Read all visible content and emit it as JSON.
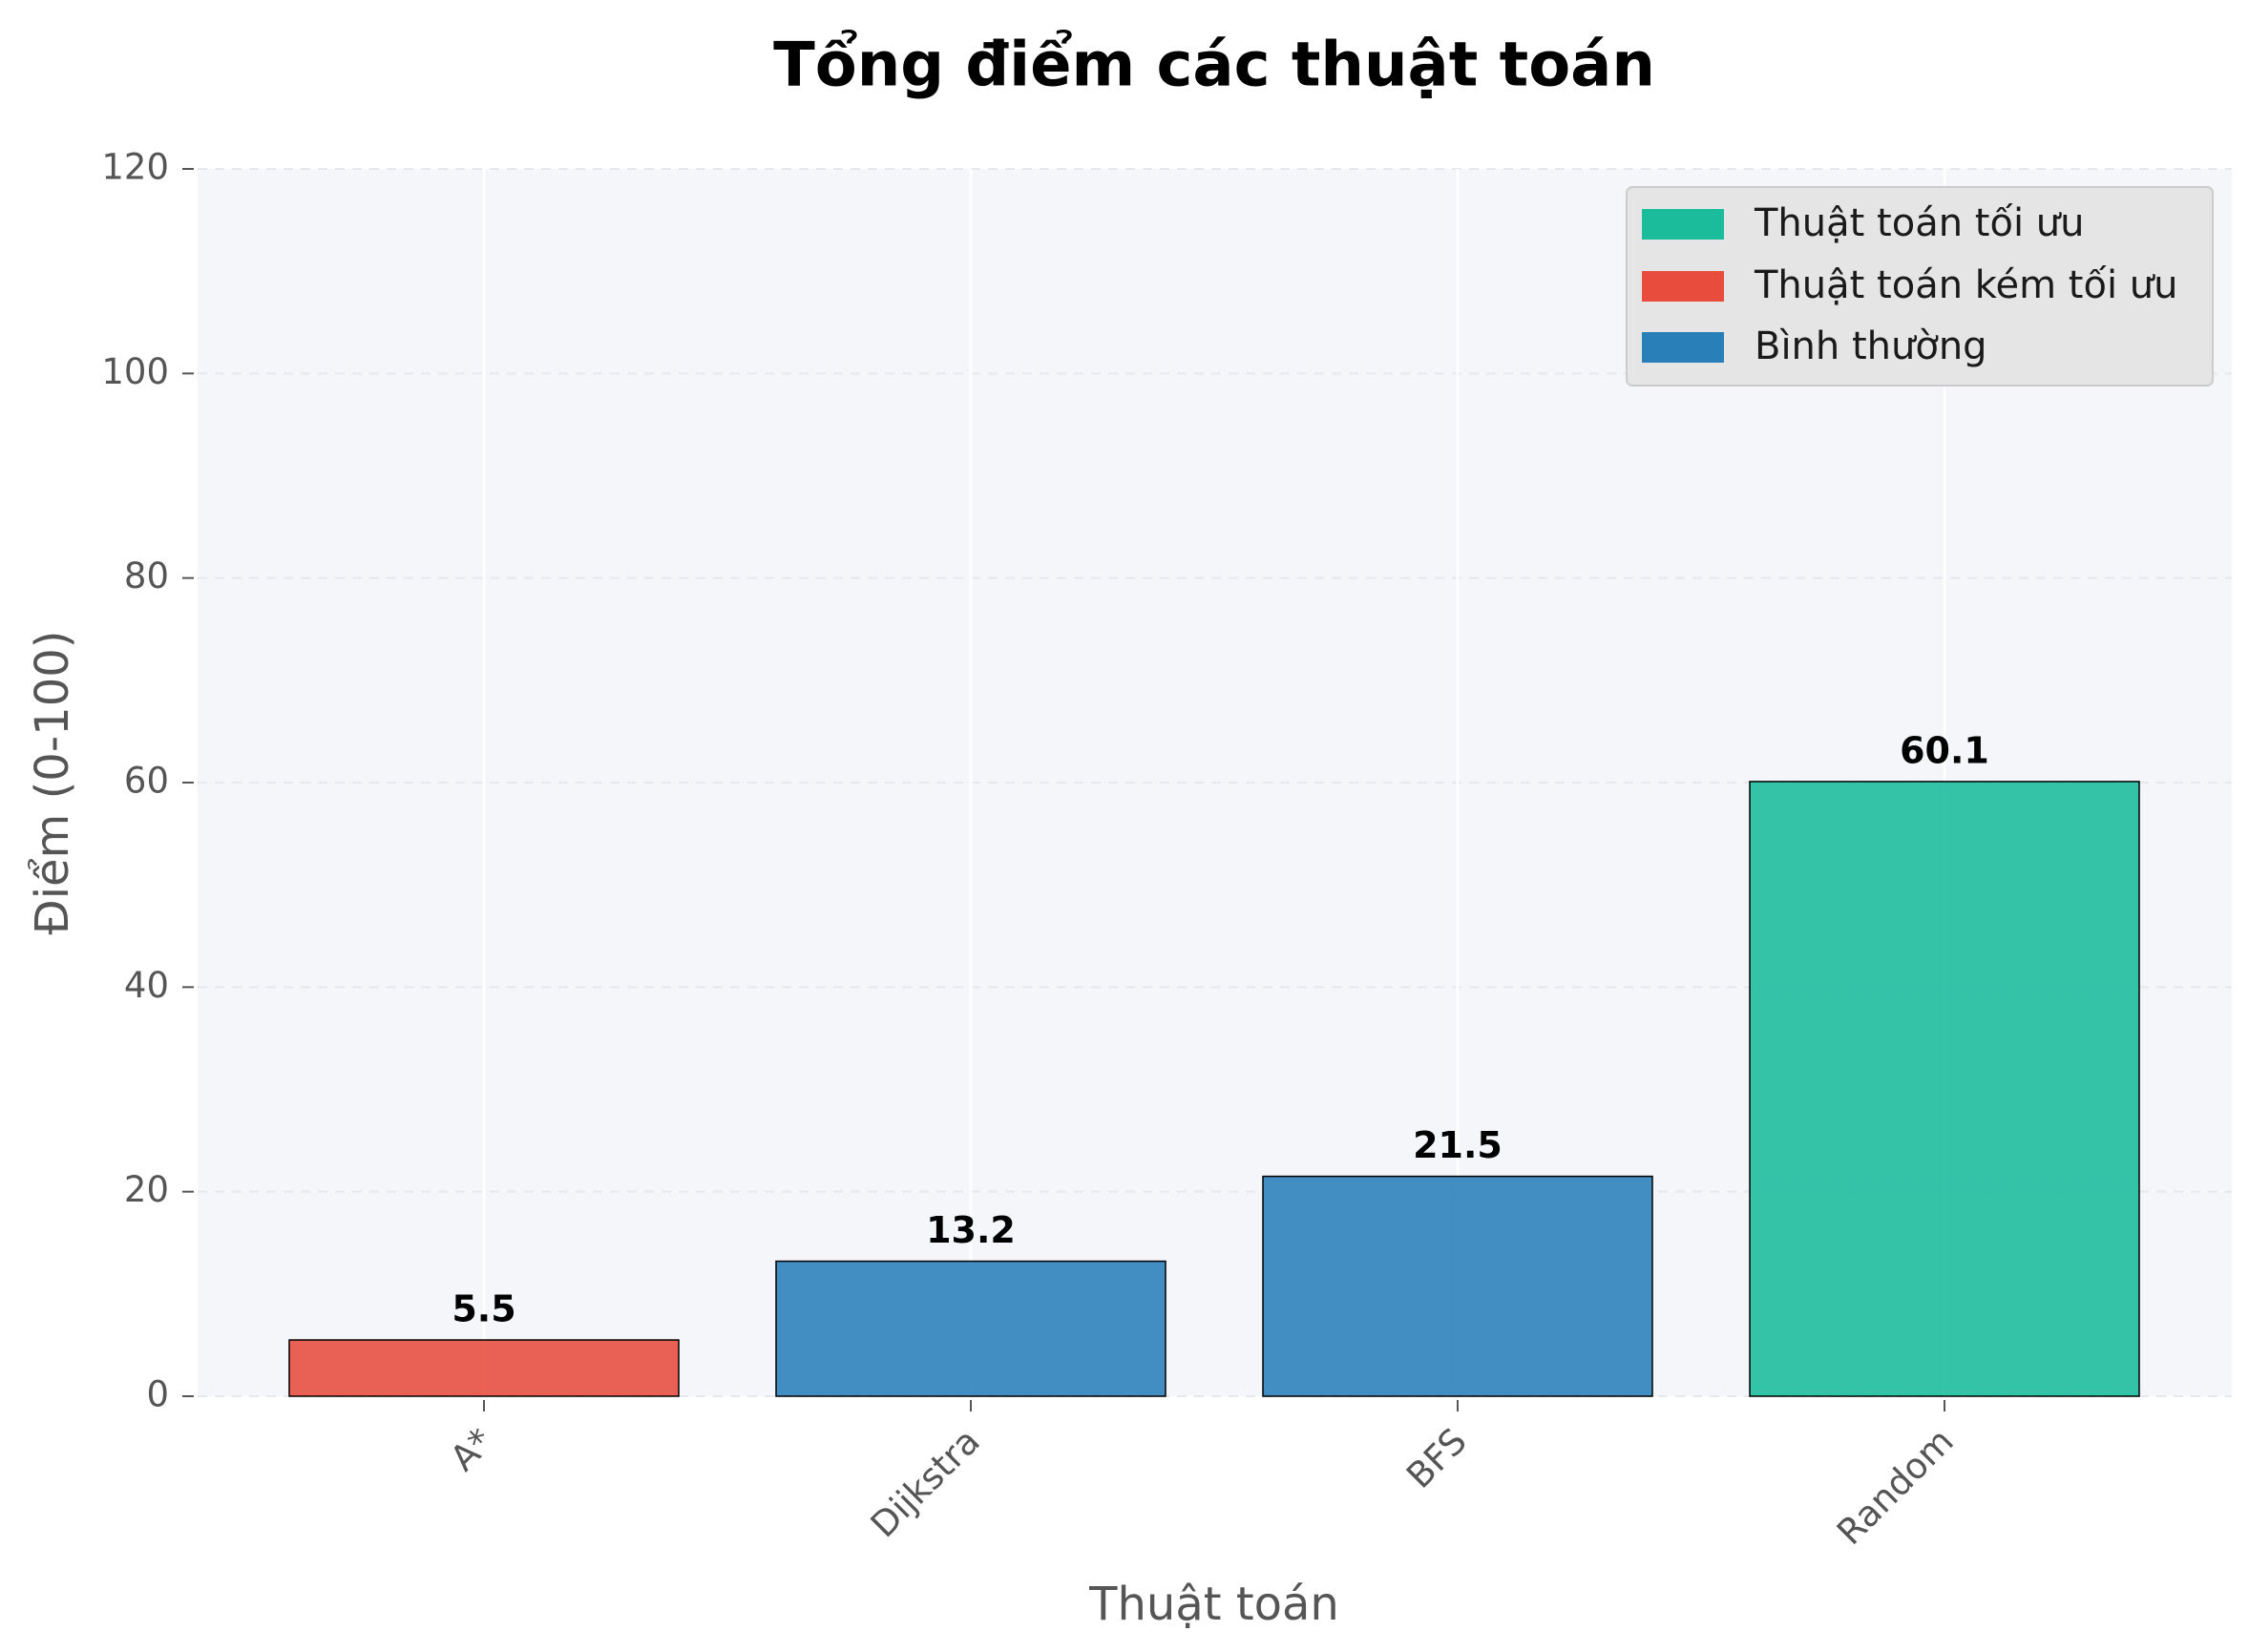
{
  "chart_data": {
    "type": "bar",
    "title": "Tổng điểm các thuật toán",
    "xlabel": "Thuật toán",
    "ylabel": "Điểm (0-100)",
    "categories": [
      "A*",
      "Dijkstra",
      "BFS",
      "Random"
    ],
    "values": [
      5.5,
      13.2,
      21.5,
      60.1
    ],
    "value_labels": [
      "5.5",
      "13.2",
      "21.5",
      "60.1"
    ],
    "bar_groups": [
      "kem",
      "binh",
      "binh",
      "toi"
    ],
    "ylim": [
      0,
      120
    ],
    "yticks": [
      0,
      20,
      40,
      60,
      80,
      100,
      120
    ],
    "grid": true,
    "legend_position": "top-right",
    "legend": [
      {
        "key": "toi",
        "label": "Thuật toán tối ưu",
        "color": "#1abc9c"
      },
      {
        "key": "kem",
        "label": "Thuật toán kém tối ưu",
        "color": "#e74c3c"
      },
      {
        "key": "binh",
        "label": "Bình thường",
        "color": "#2980b9"
      }
    ],
    "background_color": "#f5f6f9"
  }
}
